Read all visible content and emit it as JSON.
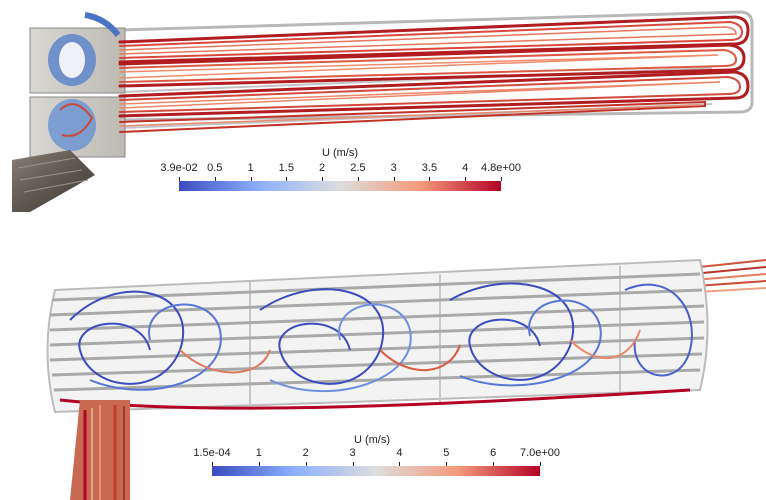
{
  "top_colorbar": {
    "title": "U (m/s)",
    "ticks": [
      "3.9e-02",
      "0.5",
      "1",
      "1.5",
      "2",
      "2.5",
      "3",
      "3.5",
      "4",
      "4.8e+00"
    ],
    "colors": [
      "#3b4cc0",
      "#8db0fe",
      "#dddddd",
      "#f49a7b",
      "#b40426"
    ]
  },
  "bottom_colorbar": {
    "title": "U (m/s)",
    "ticks": [
      "1.5e-04",
      "1",
      "2",
      "3",
      "4",
      "5",
      "6",
      "7.0e+00"
    ],
    "colors": [
      "#3b4cc0",
      "#8db0fe",
      "#dddddd",
      "#f49a7b",
      "#b40426"
    ]
  }
}
